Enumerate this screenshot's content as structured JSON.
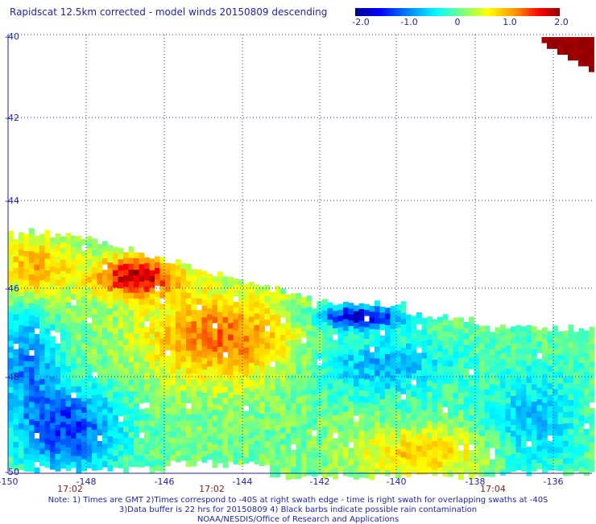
{
  "title": "Rapidscat 12.5km corrected - model winds 20150809 descending",
  "colorbar": {
    "tick_labels": [
      "-2.0",
      "-1.0",
      "0",
      "1.0",
      "2.0"
    ],
    "min": -2.0,
    "max": 2.0,
    "colors": [
      "#00008c",
      "#0000ff",
      "#0096ff",
      "#00ffff",
      "#96ff64",
      "#ffff00",
      "#ff9600",
      "#ff0000",
      "#8b0000"
    ]
  },
  "map": {
    "lat_labels": [
      "-40",
      "-42",
      "-44",
      "-46",
      "-48",
      "-50"
    ],
    "lon_labels": [
      "-150",
      "-148",
      "-146",
      "-144",
      "-142",
      "-140",
      "-138",
      "-136"
    ],
    "time_labels": [
      "17:02",
      "17:02",
      "17:04"
    ],
    "lat_range": [
      -50,
      -40
    ],
    "lon_range": [
      -150,
      -135
    ]
  },
  "notes": [
    "Note: 1) Times are GMT 2)Times correspond to -40S at right swath edge - time is right swath for overlapping swaths at -40S",
    "3)Data buffer is 22 hrs for 20150809 4) Black barbs indicate possible rain contamination",
    "NOAA/NESDIS/Office of Research and Applications"
  ]
}
